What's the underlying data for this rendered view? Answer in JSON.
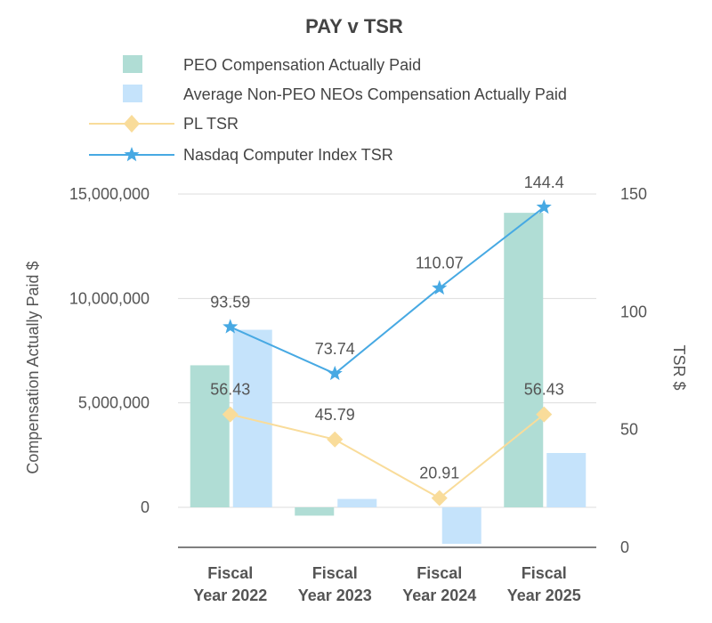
{
  "chart_data": {
    "type": "bar+line",
    "title": "PAY v TSR",
    "categories": [
      [
        "Fiscal",
        "Year 2022"
      ],
      [
        "Fiscal",
        "Year 2023"
      ],
      [
        "Fiscal",
        "Year 2024"
      ],
      [
        "Fiscal",
        "Year 2025"
      ]
    ],
    "left_axis": {
      "title": "Compensation Actually Paid $",
      "ticks": [
        0,
        5000000,
        10000000,
        15000000
      ],
      "tick_labels": [
        "0",
        "5,000,000",
        "10,000,000",
        "15,000,000"
      ],
      "range": [
        -1950000,
        15000000
      ]
    },
    "right_axis": {
      "title": "TSR $",
      "ticks": [
        0,
        50,
        100,
        150
      ],
      "tick_labels": [
        "0",
        "50",
        "100",
        "150"
      ],
      "range": [
        0,
        150
      ]
    },
    "bar_series": [
      {
        "name": "PEO Compensation Actually Paid",
        "color": "#b0ddd5",
        "values": [
          6800000,
          -400000,
          0,
          14100000
        ]
      },
      {
        "name": "Average Non-PEO NEOs Compensation Actually Paid",
        "color": "#c5e3fb",
        "values": [
          8500000,
          400000,
          -1750000,
          2600000
        ]
      }
    ],
    "line_series": [
      {
        "name": "PL TSR",
        "color": "#f9dc9a",
        "marker": "diamond",
        "values": [
          56.43,
          45.79,
          20.91,
          56.43
        ],
        "labels": [
          "56.43",
          "45.79",
          "20.91",
          "56.43"
        ]
      },
      {
        "name": "Nasdaq Computer Index TSR",
        "color": "#47a9e3",
        "marker": "star",
        "values": [
          93.59,
          73.74,
          110.07,
          144.4
        ],
        "labels": [
          "93.59",
          "73.74",
          "110.07",
          "144.4"
        ]
      }
    ],
    "legend_position": "top"
  }
}
